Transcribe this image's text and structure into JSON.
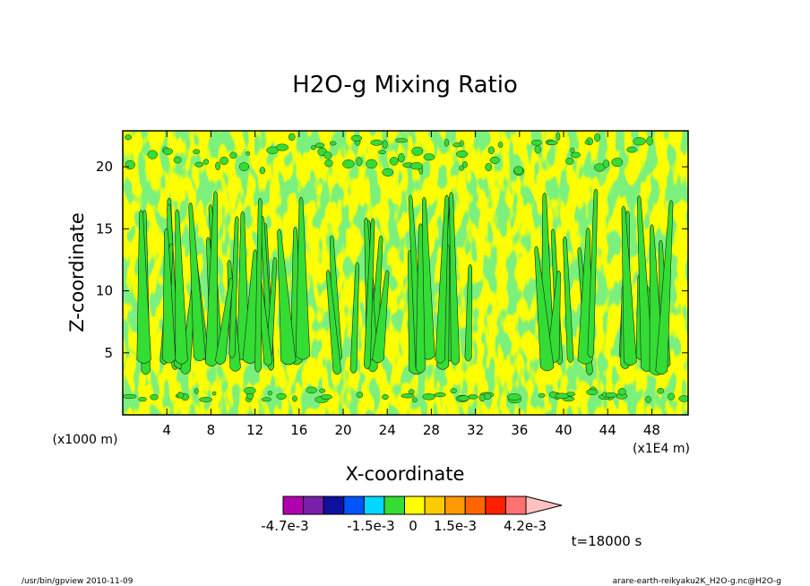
{
  "chart_data": {
    "type": "heatmap",
    "title": "H2O-g Mixing Ratio",
    "xlabel": "X-coordinate",
    "ylabel": "Z-coordinate",
    "x_unit": "(x1E4 m)",
    "y_unit": "(x1000 m)",
    "xlim": [
      0,
      51.3
    ],
    "ylim": [
      0,
      22.9
    ],
    "xticks": [
      "4",
      "8",
      "12",
      "16",
      "20",
      "24",
      "28",
      "32",
      "36",
      "40",
      "44",
      "48"
    ],
    "xtick_values": [
      4,
      8,
      12,
      16,
      20,
      24,
      28,
      32,
      36,
      40,
      44,
      48
    ],
    "yticks": [
      "5",
      "10",
      "15",
      "20"
    ],
    "ytick_values": [
      5,
      10,
      15,
      20
    ],
    "background_level_color": "#ffff00",
    "feature_color": "#33dd33",
    "plume_centers_x": [
      4,
      9,
      14,
      21,
      29,
      40,
      48
    ],
    "colorbar": {
      "colors": [
        "#b000b0",
        "#7a1fa8",
        "#1010a0",
        "#0055ff",
        "#00d8ff",
        "#33dd33",
        "#ffff00",
        "#ffcc00",
        "#ff9900",
        "#ff6600",
        "#ff2000",
        "#ff7070",
        "#ffc0c0"
      ],
      "labels": [
        "-4.7e-3",
        "-1.5e-3",
        "0",
        "1.5e-3",
        "4.2e-3"
      ]
    },
    "time_label": "t=18000 s"
  },
  "footer": {
    "left": "/usr/bin/gpview   2010-11-09",
    "right": "arare-earth-reikyaku2K_H2O-g.nc@H2O-g"
  }
}
